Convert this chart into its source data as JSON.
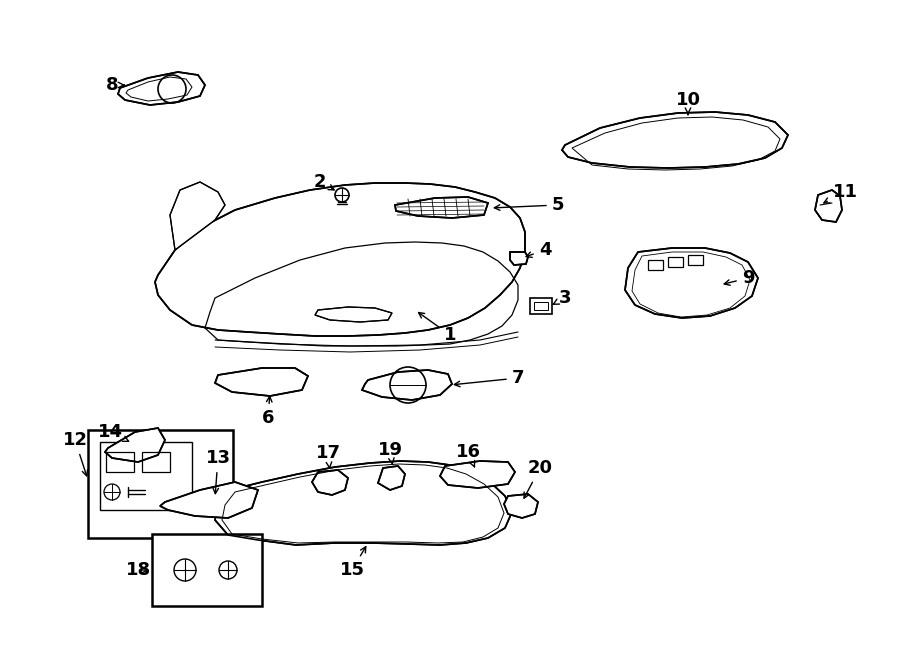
{
  "bg_color": "#ffffff",
  "line_color": "#000000",
  "fig_width": 9.0,
  "fig_height": 6.61,
  "dpi": 100,
  "lw": 1.2,
  "font_size": 13
}
